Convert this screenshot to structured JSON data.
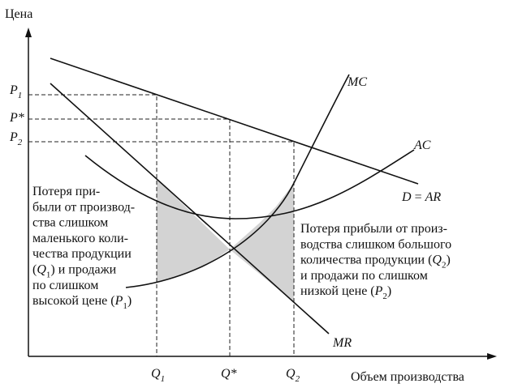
{
  "axes": {
    "y_label": "Цена",
    "x_label": "Объем производства"
  },
  "price_ticks": [
    {
      "var": "P",
      "sub": "1"
    },
    {
      "var": "P*"
    },
    {
      "var": "P",
      "sub": "2"
    }
  ],
  "quantity_ticks": [
    {
      "var": "Q",
      "sub": "1"
    },
    {
      "var": "Q*"
    },
    {
      "var": "Q",
      "sub": "2"
    }
  ],
  "curves": {
    "mc": "MC",
    "ac": "AC",
    "demand": {
      "left": "D",
      "eq": " = ",
      "right": "AR"
    },
    "mr": "MR"
  },
  "left_note": [
    {
      "text": "Потеря при-"
    },
    {
      "text": "были от производ-"
    },
    {
      "text": "ства слишком"
    },
    {
      "text": "маленького коли-"
    },
    {
      "text": "чества продукции"
    },
    {
      "before": "(",
      "var": "Q",
      "sub": "1",
      "after": ") и продажи"
    },
    {
      "text": "по слишком"
    },
    {
      "before": "высокой цене (",
      "var": "P",
      "sub": "1",
      "after": ")"
    }
  ],
  "right_note": [
    {
      "text": "Потеря прибыли от произ-"
    },
    {
      "text": "водства слишком большого"
    },
    {
      "before": "количества продукции (",
      "var": "Q",
      "sub": "2",
      "after": ")"
    },
    {
      "text": "и продажи по слишком"
    },
    {
      "before": "низкой цене (",
      "var": "P",
      "sub": "2",
      "after": ")"
    }
  ]
}
